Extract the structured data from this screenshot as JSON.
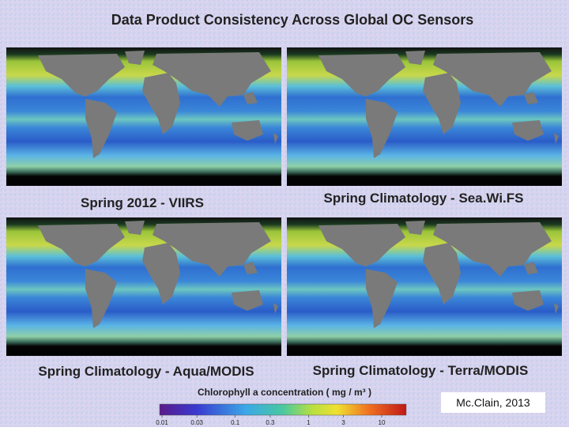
{
  "header": {
    "title": "Data Product Consistency Across Global OC Sensors"
  },
  "panels": [
    {
      "caption": "Spring 2012 - VIIRS"
    },
    {
      "caption": "Spring Climatology - Sea.Wi.FS"
    },
    {
      "caption": "Spring Climatology - Aqua/MODIS"
    },
    {
      "caption": "Spring Climatology - Terra/MODIS"
    }
  ],
  "colorbar": {
    "title": "Chlorophyll a concentration ( mg / m³ )",
    "ticks": [
      0.01,
      0.03,
      0.1,
      0.3,
      1,
      3,
      10
    ]
  },
  "credit": "Mc.Clain, 2013"
}
